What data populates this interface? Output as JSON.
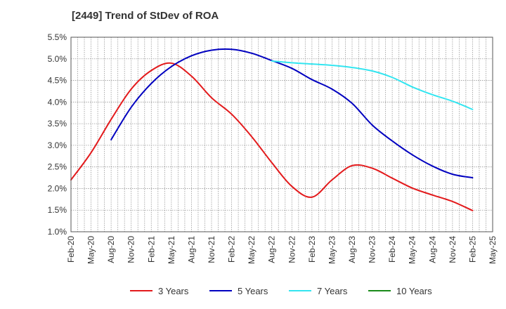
{
  "chart_data": {
    "type": "line",
    "title": "[2449]  Trend of StDev of ROA",
    "xlabel": "",
    "ylabel": "",
    "x_tick_labels": [
      "Feb-20",
      "May-20",
      "Aug-20",
      "Nov-20",
      "Feb-21",
      "May-21",
      "Aug-21",
      "Nov-21",
      "Feb-22",
      "May-22",
      "Aug-22",
      "Nov-22",
      "Feb-23",
      "May-23",
      "Aug-23",
      "Nov-23",
      "Feb-24",
      "May-24",
      "Aug-24",
      "Nov-24",
      "Feb-25",
      "May-25"
    ],
    "y_tick_labels": [
      "1.0%",
      "1.5%",
      "2.0%",
      "2.5%",
      "3.0%",
      "3.5%",
      "4.0%",
      "4.5%",
      "5.0%",
      "5.5%"
    ],
    "ylim": [
      1.0,
      5.5
    ],
    "y_unit": "%",
    "grid": true,
    "legend_position": "bottom",
    "series": [
      {
        "name": "3 Years",
        "color": "#e31a1c",
        "x": [
          "Feb-20",
          "May-20",
          "Aug-20",
          "Nov-20",
          "Feb-21",
          "May-21",
          "Aug-21",
          "Nov-21",
          "Feb-22",
          "May-22",
          "Aug-22",
          "Nov-22",
          "Feb-23",
          "May-23",
          "Aug-23",
          "Nov-23",
          "Feb-24",
          "May-24",
          "Aug-24",
          "Nov-24",
          "Feb-25"
        ],
        "values": [
          2.2,
          2.83,
          3.6,
          4.3,
          4.73,
          4.9,
          4.6,
          4.1,
          3.72,
          3.2,
          2.6,
          2.05,
          1.8,
          2.2,
          2.53,
          2.47,
          2.24,
          2.01,
          1.85,
          1.7,
          1.49
        ]
      },
      {
        "name": "5 Years",
        "color": "#0000c0",
        "x": [
          "Aug-20",
          "Nov-20",
          "Feb-21",
          "May-21",
          "Aug-21",
          "Nov-21",
          "Feb-22",
          "May-22",
          "Aug-22",
          "Nov-22",
          "Feb-23",
          "May-23",
          "Aug-23",
          "Nov-23",
          "Feb-24",
          "May-24",
          "Aug-24",
          "Nov-24",
          "Feb-25"
        ],
        "values": [
          3.13,
          3.88,
          4.43,
          4.82,
          5.07,
          5.2,
          5.22,
          5.13,
          4.96,
          4.78,
          4.52,
          4.3,
          3.97,
          3.47,
          3.1,
          2.78,
          2.52,
          2.33,
          2.25
        ]
      },
      {
        "name": "7 Years",
        "color": "#33e5f0",
        "x": [
          "Aug-22",
          "Nov-22",
          "Feb-23",
          "May-23",
          "Aug-23",
          "Nov-23",
          "Feb-24",
          "May-24",
          "Aug-24",
          "Nov-24",
          "Feb-25"
        ],
        "values": [
          4.95,
          4.91,
          4.88,
          4.85,
          4.8,
          4.72,
          4.57,
          4.35,
          4.17,
          4.02,
          3.83
        ]
      },
      {
        "name": "10 Years",
        "color": "#1a8a1a",
        "x": [],
        "values": []
      }
    ]
  }
}
